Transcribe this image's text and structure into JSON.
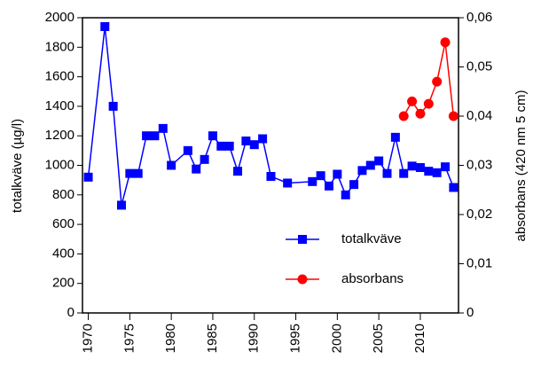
{
  "chart_data": {
    "type": "line",
    "x": [
      1970,
      1972,
      1973,
      1974,
      1975,
      1976,
      1977,
      1978,
      1979,
      1980,
      1982,
      1983,
      1984,
      1985,
      1986,
      1987,
      1988,
      1989,
      1990,
      1991,
      1992,
      1994,
      1997,
      1998,
      1999,
      2000,
      2001,
      2002,
      2003,
      2004,
      2005,
      2006,
      2007,
      2008,
      2009,
      2010,
      2011,
      2012,
      2013,
      2014
    ],
    "series": [
      {
        "name": "totalkväve",
        "color": "#0000ff",
        "marker": "square",
        "x": [
          1970,
          1972,
          1973,
          1974,
          1975,
          1976,
          1977,
          1978,
          1979,
          1980,
          1982,
          1983,
          1984,
          1985,
          1986,
          1987,
          1988,
          1989,
          1990,
          1991,
          1992,
          1994,
          1997,
          1998,
          1999,
          2000,
          2001,
          2002,
          2003,
          2004,
          2005,
          2006,
          2007,
          2008,
          2009,
          2010,
          2011,
          2012,
          2013,
          2014
        ],
        "values": [
          920,
          1940,
          1400,
          730,
          945,
          945,
          1200,
          1200,
          1250,
          1000,
          1100,
          975,
          1040,
          1200,
          1130,
          1130,
          960,
          1165,
          1140,
          1180,
          925,
          880,
          890,
          930,
          860,
          940,
          800,
          870,
          965,
          1000,
          1030,
          945,
          1190,
          945,
          995,
          985,
          960,
          950,
          990,
          850
        ]
      },
      {
        "name": "absorbans",
        "color": "#ff0000",
        "marker": "circle",
        "axis": "y2",
        "x": [
          2008,
          2009,
          2010,
          2011,
          2012,
          2013,
          2014
        ],
        "values": [
          0.04,
          0.043,
          0.0405,
          0.0425,
          0.047,
          0.055,
          0.04
        ]
      }
    ],
    "ylabel": "totalkväve (µg/l)",
    "y2label": "absorbans (420 nm 5 cm)",
    "xlim": [
      1969.3,
      2014.6
    ],
    "xticks": [
      1970,
      1975,
      1980,
      1985,
      1990,
      1995,
      2000,
      2005,
      2010
    ],
    "ylim": [
      0,
      2000
    ],
    "yticks": [
      0,
      200,
      400,
      600,
      800,
      1000,
      1200,
      1400,
      1600,
      1800,
      2000
    ],
    "y2lim": [
      0,
      0.06
    ],
    "y2ticks": [
      0,
      {
        "value": 0.01,
        "label": "0,01"
      },
      {
        "value": 0.02,
        "label": "0,02"
      },
      {
        "value": 0.03,
        "label": "0,03"
      },
      {
        "value": 0.04,
        "label": "0,04"
      },
      {
        "value": 0.05,
        "label": "0,05"
      },
      {
        "value": 0.06,
        "label": "0,06"
      }
    ],
    "legend": "lower right"
  }
}
